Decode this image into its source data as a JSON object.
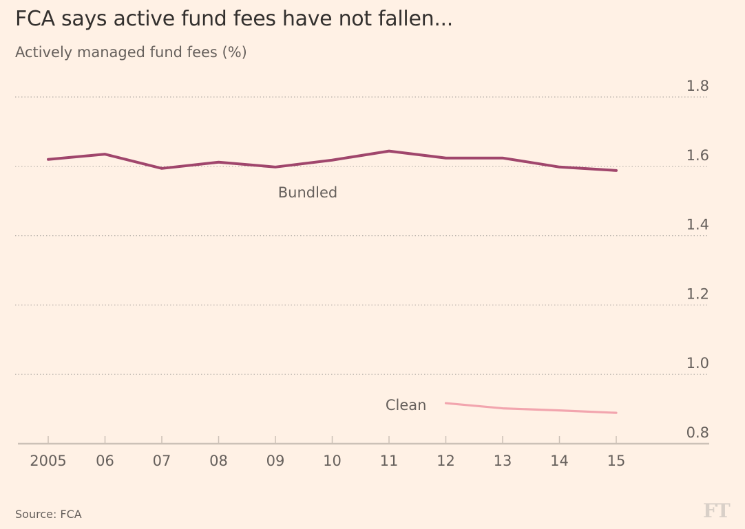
{
  "header": {
    "title": "FCA says active fund fees have not fallen...",
    "subtitle": "Actively managed fund fees (%)"
  },
  "footer": {
    "source": "Source: FCA",
    "logo": "FT"
  },
  "chart_data": {
    "type": "line",
    "title": "FCA says active fund fees have not fallen...",
    "subtitle": "Actively managed fund fees (%)",
    "xlabel": "",
    "ylabel": "Actively managed fund fees (%)",
    "x": [
      2005,
      2006,
      2007,
      2008,
      2009,
      2010,
      2011,
      2012,
      2013,
      2014,
      2015
    ],
    "x_tick_labels": [
      "2005",
      "06",
      "07",
      "08",
      "09",
      "10",
      "11",
      "12",
      "13",
      "14",
      "15"
    ],
    "y_ticks": [
      0.8,
      1.0,
      1.2,
      1.4,
      1.6,
      1.8
    ],
    "y_tick_labels": [
      "0.8",
      "1.0",
      "1.2",
      "1.4",
      "1.6",
      "1.8"
    ],
    "ylim": [
      0.8,
      1.8
    ],
    "grid": true,
    "y_axis_side": "right",
    "series": [
      {
        "name": "Bundled",
        "color": "#a0466c",
        "label_position": "below-line-middle",
        "values": [
          1.62,
          1.635,
          1.594,
          1.612,
          1.598,
          1.618,
          1.644,
          1.624,
          1.624,
          1.598,
          1.588
        ]
      },
      {
        "name": "Clean",
        "color": "#f2a5ae",
        "label_position": "left-of-line-start",
        "values": [
          null,
          null,
          null,
          null,
          null,
          null,
          null,
          0.917,
          0.902,
          0.896,
          0.889
        ]
      }
    ],
    "source": "Source: FCA"
  },
  "colors": {
    "background": "#fff1e5",
    "text": "#33302e",
    "muted_text": "#66605c",
    "gridline": "#b3ada6",
    "axis": "#ccc1b7"
  }
}
